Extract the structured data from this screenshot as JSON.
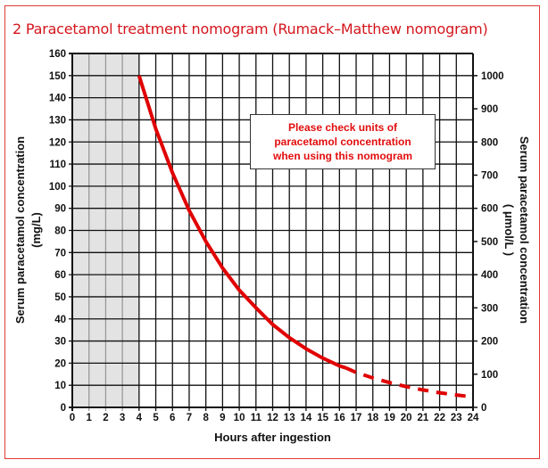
{
  "title": "2  Paracetamol treatment nomogram (Rumack–Matthew nomogram)",
  "note_lines": [
    "Please check units of",
    "paracetamol concentration",
    "when using this nomogram"
  ],
  "colors": {
    "curve": "#e00000",
    "title": "#d4151c",
    "shaded": "#e3e3e3"
  },
  "chart_data": {
    "type": "line",
    "title": "Paracetamol treatment nomogram (Rumack–Matthew nomogram)",
    "xlabel": "Hours after ingestion",
    "ylabel": "Serum paracetamol concentration (mg/L)",
    "ylabel_lines": [
      "Serum paracetamol concentration",
      "(mg/L)"
    ],
    "y2label_lines": [
      "Serum paracetamol concentration",
      "( μmol/L )"
    ],
    "xlim": [
      0,
      24
    ],
    "ylim": [
      0,
      160
    ],
    "x_ticks": [
      "0",
      "1",
      "2",
      "3",
      "4",
      "5",
      "6",
      "7",
      "8",
      "9",
      "10",
      "11",
      "12",
      "13",
      "14",
      "15",
      "16",
      "17",
      "18",
      "19",
      "20",
      "21",
      "22",
      "23",
      "24"
    ],
    "y_ticks": [
      "0",
      "10",
      "20",
      "30",
      "40",
      "50",
      "60",
      "70",
      "80",
      "90",
      "100",
      "110",
      "120",
      "130",
      "140",
      "150",
      "160"
    ],
    "y2_ticks": [
      "0",
      "100",
      "200",
      "300",
      "400",
      "500",
      "600",
      "700",
      "800",
      "900",
      "1000"
    ],
    "y2_per_y": 6.6667,
    "grid": true,
    "shaded_region_hours": [
      0,
      4
    ],
    "series": [
      {
        "name": "treatment line (solid)",
        "style": "solid",
        "x": [
          4,
          5,
          6,
          7,
          8,
          9,
          10,
          11,
          12,
          13,
          14,
          15,
          16,
          16.4
        ],
        "y": [
          150,
          126,
          106,
          89,
          75,
          63,
          53,
          45,
          37.5,
          31.5,
          26.5,
          22.3,
          18.8,
          17.8
        ]
      },
      {
        "name": "treatment line (extrapolated)",
        "style": "dashed",
        "x": [
          16.4,
          17,
          18,
          19,
          20,
          21,
          22,
          23,
          24
        ],
        "y": [
          17.8,
          15.8,
          13.3,
          11.2,
          9.4,
          7.9,
          6.6,
          5.6,
          4.7
        ]
      }
    ]
  }
}
